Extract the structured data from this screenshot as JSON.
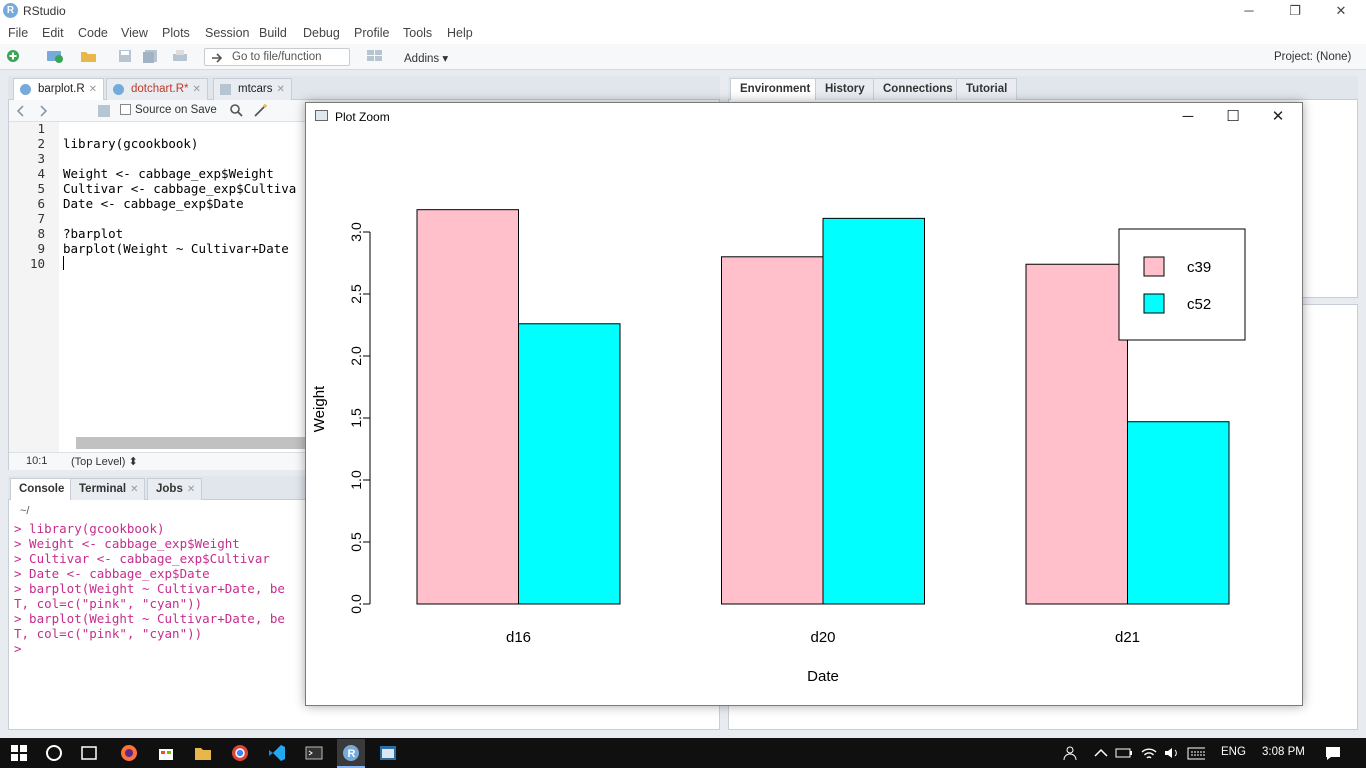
{
  "window": {
    "app_logo_letter": "R",
    "title": "RStudio",
    "minimize": "─",
    "restore": "❐",
    "close": "✕"
  },
  "menu": [
    "File",
    "Edit",
    "Code",
    "View",
    "Plots",
    "Session",
    "Build",
    "Debug",
    "Profile",
    "Tools",
    "Help"
  ],
  "toolbar": {
    "goto_placeholder": "Go to file/function",
    "addins_label": "Addins",
    "project_label": "Project: (None)"
  },
  "source": {
    "tabs": [
      {
        "label": "barplot.R",
        "active": true
      },
      {
        "label": "dotchart.R*",
        "active": false
      },
      {
        "label": "mtcars",
        "active": false
      }
    ],
    "source_on_save": "Source on Save",
    "line_numbers": [
      "1",
      "2",
      "3",
      "4",
      "5",
      "6",
      "7",
      "8",
      "9",
      "10"
    ],
    "code_lines": [
      "",
      "library(gcookbook)",
      "",
      "Weight <- cabbage_exp$Weight",
      "Cultivar <- cabbage_exp$Cultiva",
      "Date <- cabbage_exp$Date",
      "",
      "?barplot",
      "barplot(Weight ~ Cultivar+Date",
      ""
    ],
    "cursor_position": "10:1",
    "scope": "(Top Level)"
  },
  "console": {
    "tabs": [
      {
        "label": "Console",
        "active": true
      },
      {
        "label": "Terminal",
        "active": false
      },
      {
        "label": "Jobs",
        "active": false
      }
    ],
    "path": "~/",
    "lines": [
      "> library(gcookbook)",
      "> Weight <- cabbage_exp$Weight",
      "> Cultivar <- cabbage_exp$Cultivar",
      "> Date <- cabbage_exp$Date",
      "> barplot(Weight ~ Cultivar+Date, be",
      "T, col=c(\"pink\", \"cyan\"))",
      "> barplot(Weight ~ Cultivar+Date, be",
      "T, col=c(\"pink\", \"cyan\"))",
      "> "
    ]
  },
  "env_tabs": [
    "Environment",
    "History",
    "Connections",
    "Tutorial"
  ],
  "plot_window": {
    "title": "Plot Zoom",
    "minimize": "─",
    "maximize": "☐",
    "close": "✕"
  },
  "chart_data": {
    "type": "bar",
    "categories": [
      "d16",
      "d20",
      "d21"
    ],
    "series": [
      {
        "name": "c39",
        "values": [
          3.18,
          2.8,
          2.74
        ],
        "color": "#ffc0cb"
      },
      {
        "name": "c52",
        "values": [
          2.26,
          3.11,
          1.47
        ],
        "color": "#00ffff"
      }
    ],
    "xlabel": "Date",
    "ylabel": "Weight",
    "ylim": [
      0,
      3.0
    ],
    "yticks": [
      "0.0",
      "0.5",
      "1.0",
      "1.5",
      "2.0",
      "2.5",
      "3.0"
    ],
    "legend_position": "top-right",
    "grid": false
  },
  "taskbar": {
    "lang": "ENG",
    "time": "3:08 PM"
  },
  "colors": {
    "console_text": "#c52e8d",
    "rstudio_blue": "#75aadb",
    "taskbar": "#101010"
  }
}
